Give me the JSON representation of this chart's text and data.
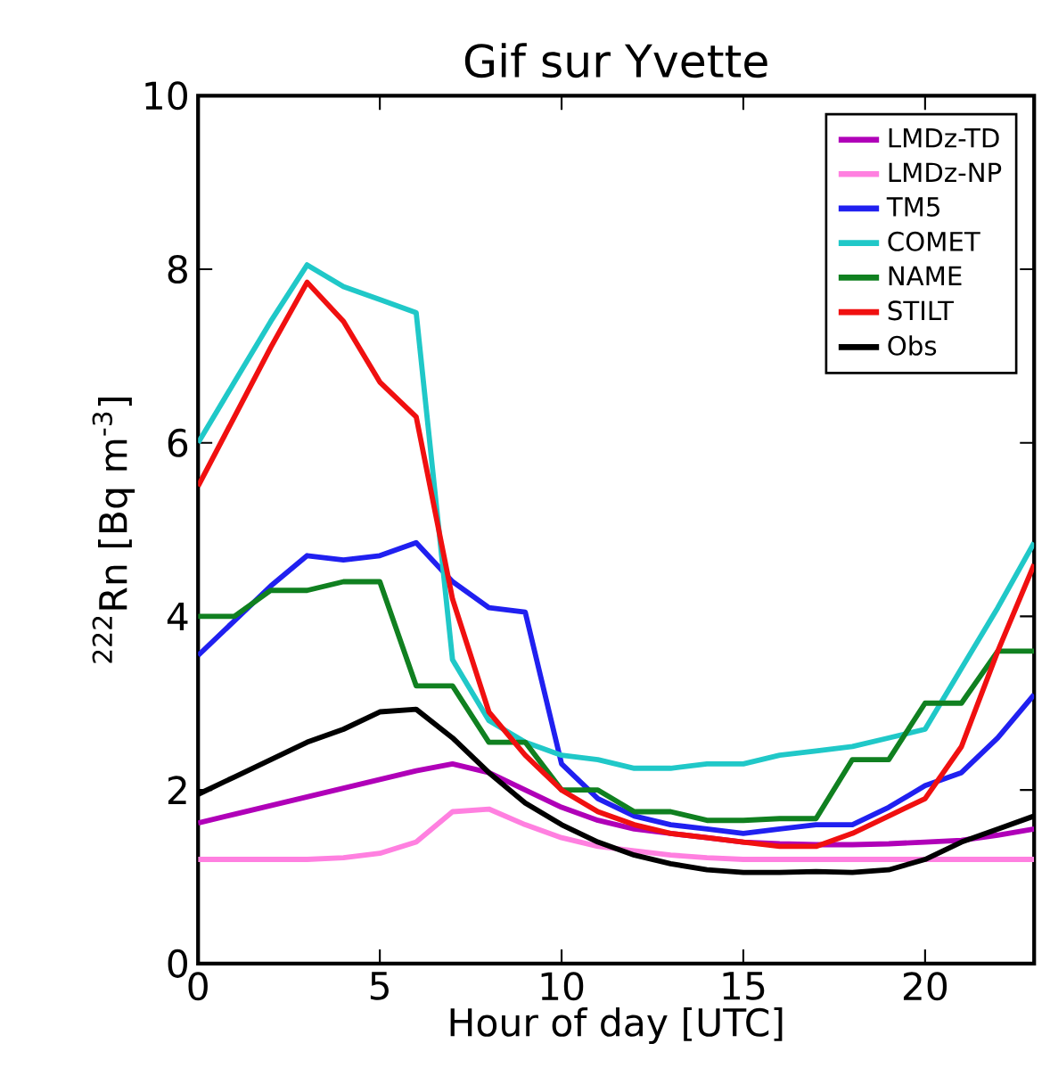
{
  "chart_data": {
    "type": "line",
    "title": "Gif sur Yvette",
    "xlabel": "Hour of day [UTC]",
    "ylabel": "$^{222}$Rn [Bq m$^{-3}$]",
    "x": [
      0,
      1,
      2,
      3,
      4,
      5,
      6,
      7,
      8,
      9,
      10,
      11,
      12,
      13,
      14,
      15,
      16,
      17,
      18,
      19,
      20,
      21,
      22,
      23
    ],
    "xlim": [
      0,
      23
    ],
    "xticks": [
      0,
      5,
      10,
      15,
      20
    ],
    "ylim": [
      0,
      10
    ],
    "yticks": [
      0,
      2,
      4,
      6,
      8,
      10
    ],
    "legend": "top right",
    "grid": false,
    "marker": "none",
    "line_style": "solid",
    "series": [
      {
        "name": "LMDz-TD",
        "color": "#b000b8",
        "values": [
          1.62,
          1.72,
          1.82,
          1.92,
          2.02,
          2.12,
          2.22,
          2.3,
          2.2,
          2.0,
          1.8,
          1.65,
          1.55,
          1.5,
          1.45,
          1.4,
          1.38,
          1.37,
          1.37,
          1.38,
          1.4,
          1.42,
          1.48,
          1.55
        ]
      },
      {
        "name": "LMDz-NP",
        "color": "#ff80e0",
        "values": [
          1.2,
          1.2,
          1.2,
          1.2,
          1.22,
          1.27,
          1.4,
          1.75,
          1.78,
          1.6,
          1.45,
          1.35,
          1.3,
          1.25,
          1.22,
          1.2,
          1.2,
          1.2,
          1.2,
          1.2,
          1.2,
          1.2,
          1.2,
          1.2
        ]
      },
      {
        "name": "TM5",
        "color": "#2020f0",
        "values": [
          3.55,
          3.95,
          4.35,
          4.7,
          4.65,
          4.7,
          4.85,
          4.4,
          4.1,
          4.05,
          2.3,
          1.9,
          1.7,
          1.6,
          1.55,
          1.5,
          1.55,
          1.6,
          1.6,
          1.8,
          2.05,
          2.2,
          2.6,
          3.1
        ]
      },
      {
        "name": "COMET",
        "color": "#20c8c8",
        "values": [
          6.0,
          6.7,
          7.4,
          8.05,
          7.8,
          7.65,
          7.5,
          3.5,
          2.8,
          2.55,
          2.4,
          2.35,
          2.25,
          2.25,
          2.3,
          2.3,
          2.4,
          2.45,
          2.5,
          2.6,
          2.7,
          3.4,
          4.1,
          4.85
        ]
      },
      {
        "name": "NAME",
        "color": "#108020",
        "values": [
          4.0,
          4.0,
          4.3,
          4.3,
          4.4,
          4.4,
          3.2,
          3.2,
          2.55,
          2.55,
          2.0,
          2.0,
          1.75,
          1.75,
          1.65,
          1.65,
          1.67,
          1.67,
          2.35,
          2.35,
          3.0,
          3.0,
          3.6,
          3.6
        ]
      },
      {
        "name": "STILT",
        "color": "#f01010",
        "values": [
          5.5,
          6.3,
          7.1,
          7.85,
          7.4,
          6.7,
          6.3,
          4.2,
          2.9,
          2.4,
          2.0,
          1.75,
          1.6,
          1.5,
          1.45,
          1.4,
          1.35,
          1.35,
          1.5,
          1.7,
          1.9,
          2.5,
          3.6,
          4.6
        ]
      },
      {
        "name": "Obs",
        "color": "#000000",
        "values": [
          1.95,
          2.15,
          2.35,
          2.55,
          2.7,
          2.9,
          2.93,
          2.6,
          2.2,
          1.85,
          1.6,
          1.4,
          1.25,
          1.15,
          1.08,
          1.05,
          1.05,
          1.06,
          1.05,
          1.08,
          1.2,
          1.4,
          1.55,
          1.7
        ]
      }
    ]
  }
}
